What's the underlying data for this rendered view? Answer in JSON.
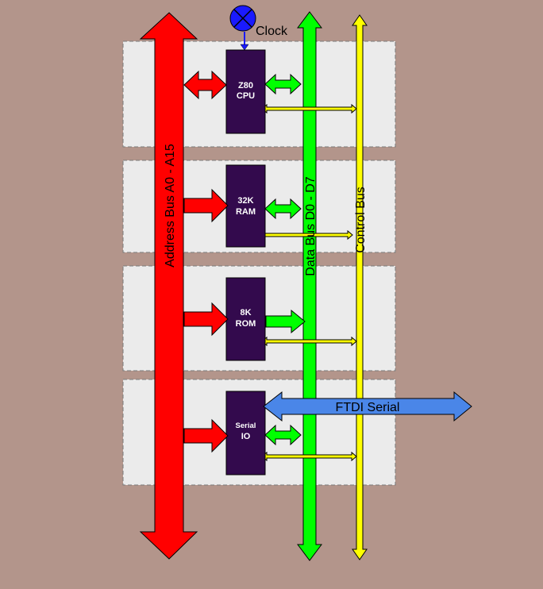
{
  "diagram": {
    "clock_label": "Clock",
    "address_bus_label": "Address Bus A0 - A15",
    "data_bus_label": "Data Bus D0 - D7",
    "control_bus_label": "Control Bus",
    "serial_link_label": "FTDI Serial",
    "chips": [
      {
        "line1": "Z80",
        "line2": "CPU"
      },
      {
        "line1": "32K",
        "line2": "RAM"
      },
      {
        "line1": "8K",
        "line2": "ROM"
      },
      {
        "line1": "Serial",
        "line2": "IO"
      }
    ]
  },
  "colors": {
    "background": "#b3958b",
    "panel": "#ebebeb",
    "chip": "#330a4d",
    "address_bus": "#ff0000",
    "data_bus": "#00ff00",
    "control_bus": "#ffff00",
    "serial": "#4a86e8",
    "clock": "#1a1aff"
  }
}
